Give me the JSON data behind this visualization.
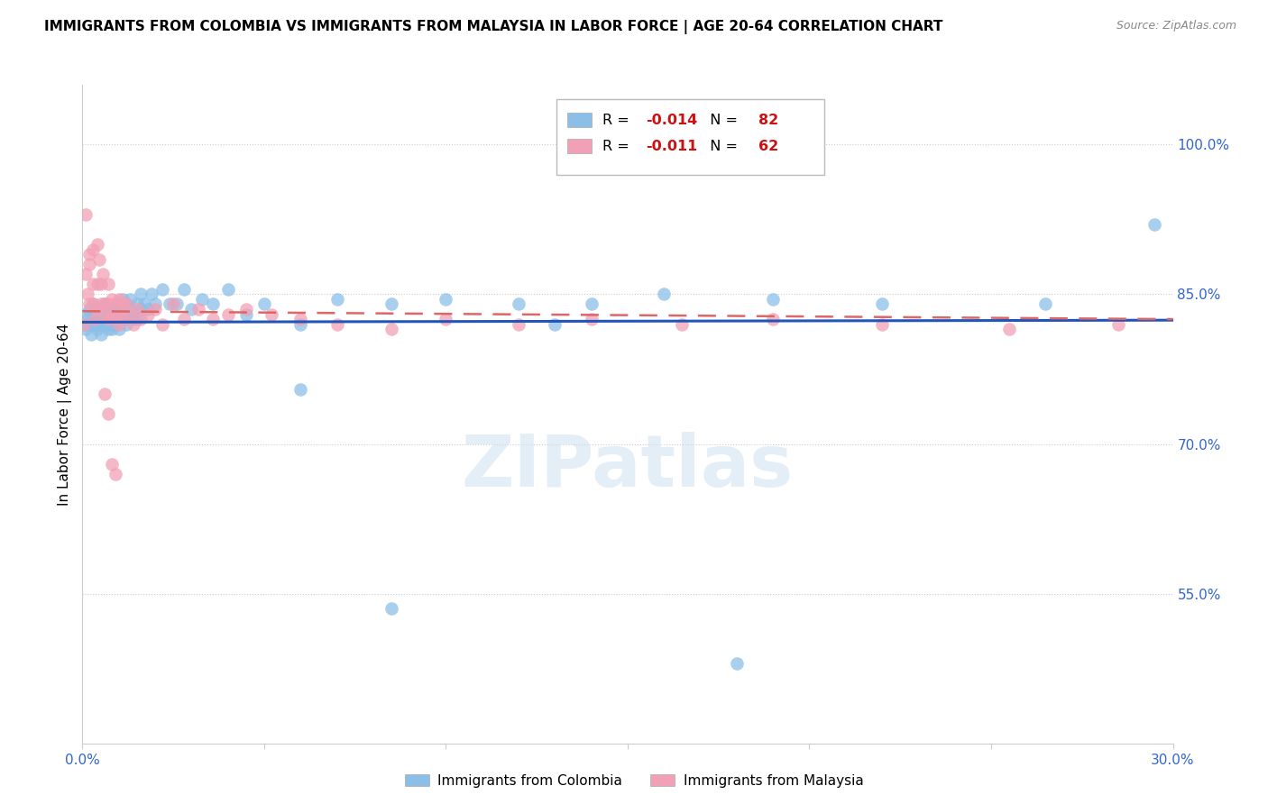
{
  "title": "IMMIGRANTS FROM COLOMBIA VS IMMIGRANTS FROM MALAYSIA IN LABOR FORCE | AGE 20-64 CORRELATION CHART",
  "source": "Source: ZipAtlas.com",
  "ylabel": "In Labor Force | Age 20-64",
  "xlim": [
    0.0,
    0.3
  ],
  "ylim": [
    0.4,
    1.06
  ],
  "xticks": [
    0.0,
    0.05,
    0.1,
    0.15,
    0.2,
    0.25,
    0.3
  ],
  "xticklabels": [
    "0.0%",
    "",
    "",
    "",
    "",
    "",
    "30.0%"
  ],
  "ytick_positions": [
    0.55,
    0.7,
    0.85,
    1.0
  ],
  "ytick_labels": [
    "55.0%",
    "70.0%",
    "85.0%",
    "100.0%"
  ],
  "colombia_color": "#8BBFE8",
  "malaysia_color": "#F2A0B5",
  "trend_colombia_color": "#2255BB",
  "trend_malaysia_color": "#DD6666",
  "watermark": "ZIPatlas",
  "legend_r_colombia": "-0.014",
  "legend_n_colombia": "82",
  "legend_r_malaysia": "-0.011",
  "legend_n_malaysia": "62",
  "colombia_x": [
    0.0005,
    0.001,
    0.001,
    0.0015,
    0.002,
    0.002,
    0.0025,
    0.003,
    0.003,
    0.003,
    0.0035,
    0.004,
    0.004,
    0.004,
    0.0045,
    0.005,
    0.005,
    0.005,
    0.005,
    0.0055,
    0.006,
    0.006,
    0.006,
    0.0065,
    0.007,
    0.007,
    0.007,
    0.0075,
    0.008,
    0.008,
    0.008,
    0.0085,
    0.009,
    0.009,
    0.009,
    0.0095,
    0.01,
    0.01,
    0.01,
    0.01,
    0.011,
    0.011,
    0.012,
    0.012,
    0.012,
    0.013,
    0.013,
    0.014,
    0.014,
    0.015,
    0.015,
    0.016,
    0.016,
    0.017,
    0.018,
    0.019,
    0.02,
    0.022,
    0.024,
    0.026,
    0.028,
    0.03,
    0.033,
    0.036,
    0.04,
    0.045,
    0.05,
    0.06,
    0.07,
    0.085,
    0.1,
    0.12,
    0.14,
    0.16,
    0.19,
    0.22,
    0.265,
    0.295,
    0.18,
    0.13,
    0.085,
    0.06
  ],
  "colombia_y": [
    0.82,
    0.83,
    0.815,
    0.825,
    0.82,
    0.835,
    0.81,
    0.83,
    0.82,
    0.84,
    0.825,
    0.82,
    0.835,
    0.815,
    0.83,
    0.825,
    0.835,
    0.82,
    0.81,
    0.825,
    0.83,
    0.82,
    0.84,
    0.825,
    0.815,
    0.83,
    0.82,
    0.835,
    0.825,
    0.815,
    0.83,
    0.82,
    0.835,
    0.825,
    0.82,
    0.84,
    0.825,
    0.815,
    0.83,
    0.835,
    0.845,
    0.825,
    0.82,
    0.84,
    0.825,
    0.835,
    0.845,
    0.825,
    0.83,
    0.84,
    0.825,
    0.85,
    0.835,
    0.84,
    0.835,
    0.85,
    0.84,
    0.855,
    0.84,
    0.84,
    0.855,
    0.835,
    0.845,
    0.84,
    0.855,
    0.83,
    0.84,
    0.82,
    0.845,
    0.84,
    0.845,
    0.84,
    0.84,
    0.85,
    0.845,
    0.84,
    0.84,
    0.92,
    0.48,
    0.82,
    0.535,
    0.755
  ],
  "malaysia_x": [
    0.0005,
    0.001,
    0.001,
    0.0015,
    0.002,
    0.002,
    0.002,
    0.003,
    0.003,
    0.003,
    0.0035,
    0.004,
    0.004,
    0.004,
    0.0045,
    0.005,
    0.005,
    0.0055,
    0.006,
    0.006,
    0.007,
    0.007,
    0.007,
    0.008,
    0.008,
    0.009,
    0.009,
    0.01,
    0.01,
    0.011,
    0.011,
    0.012,
    0.013,
    0.014,
    0.015,
    0.016,
    0.018,
    0.02,
    0.022,
    0.025,
    0.028,
    0.032,
    0.036,
    0.04,
    0.045,
    0.052,
    0.06,
    0.07,
    0.085,
    0.1,
    0.12,
    0.14,
    0.165,
    0.19,
    0.22,
    0.255,
    0.285,
    0.006,
    0.007,
    0.008,
    0.009,
    0.01
  ],
  "malaysia_y": [
    0.82,
    0.93,
    0.87,
    0.85,
    0.84,
    0.89,
    0.88,
    0.895,
    0.86,
    0.84,
    0.825,
    0.9,
    0.86,
    0.835,
    0.885,
    0.86,
    0.84,
    0.87,
    0.84,
    0.83,
    0.86,
    0.84,
    0.825,
    0.845,
    0.83,
    0.84,
    0.825,
    0.845,
    0.83,
    0.84,
    0.825,
    0.84,
    0.83,
    0.82,
    0.835,
    0.825,
    0.83,
    0.835,
    0.82,
    0.84,
    0.825,
    0.835,
    0.825,
    0.83,
    0.835,
    0.83,
    0.825,
    0.82,
    0.815,
    0.825,
    0.82,
    0.825,
    0.82,
    0.825,
    0.82,
    0.815,
    0.82,
    0.75,
    0.73,
    0.68,
    0.67,
    0.82
  ]
}
